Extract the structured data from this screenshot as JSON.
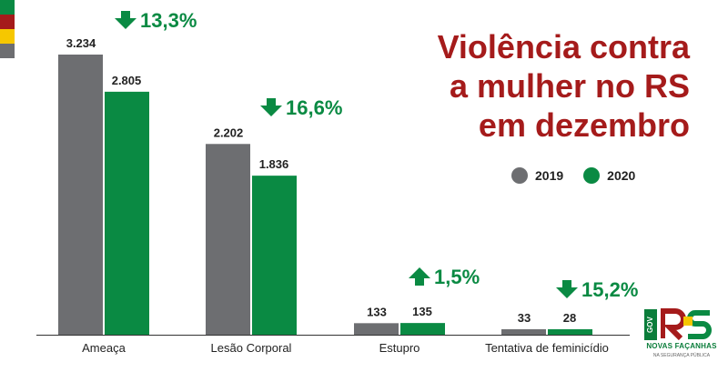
{
  "title_lines": [
    "Violência contra",
    "a mulher no RS",
    "em dezembro"
  ],
  "colors": {
    "series_2019": "#6d6e71",
    "series_2020": "#0a8a43",
    "title": "#a51b1b",
    "arrow": "#0a8a43",
    "flag": [
      "#0a8a43",
      "#a51b1b",
      "#f6c700",
      "#6d6e71"
    ]
  },
  "logo": {
    "gov_text": "GOV",
    "name": "NOVAS FAÇANHAS",
    "sub": "NA SEGURANÇA PÚBLICA"
  },
  "chart_data": {
    "type": "bar",
    "title": "Violência contra a mulher no RS em dezembro",
    "categories": [
      "Ameaça",
      "Lesão Corporal",
      "Estupro",
      "Tentativa de feminicídio"
    ],
    "series": [
      {
        "name": "2019",
        "values": [
          3234,
          2202,
          133,
          33
        ],
        "labels": [
          "3.234",
          "2.202",
          "133",
          "33"
        ]
      },
      {
        "name": "2020",
        "values": [
          2805,
          1836,
          135,
          28
        ],
        "labels": [
          "2.805",
          "1.836",
          "135",
          "28"
        ]
      }
    ],
    "changes": [
      {
        "text": "13,3%",
        "direction": "down"
      },
      {
        "text": "16,6%",
        "direction": "down"
      },
      {
        "text": "1,5%",
        "direction": "up"
      },
      {
        "text": "15,2%",
        "direction": "down"
      }
    ],
    "legend": [
      "2019",
      "2020"
    ],
    "legend_position": "right",
    "ylim": [
      0,
      3234
    ],
    "grid": false
  }
}
